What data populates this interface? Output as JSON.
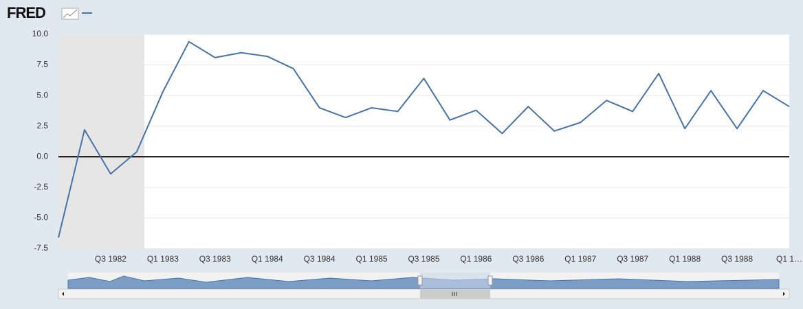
{
  "logo": "FRED",
  "chart_data": {
    "type": "line",
    "categories": [
      null,
      null,
      "Q3 1982",
      null,
      "Q1 1983",
      null,
      "Q3 1983",
      null,
      "Q1 1984",
      null,
      "Q3 1984",
      null,
      "Q1 1985",
      null,
      "Q3 1985",
      null,
      "Q1 1986",
      null,
      "Q3 1986",
      null,
      "Q1 1987",
      null,
      "Q3 1987",
      null,
      "Q1 1988",
      null,
      "Q3 1988",
      null,
      "Q1 1…"
    ],
    "series": [
      {
        "color": "#4572a7",
        "values": [
          -6.6,
          2.2,
          -1.4,
          0.4,
          5.3,
          9.4,
          8.1,
          8.5,
          8.2,
          7.2,
          4.0,
          3.2,
          4.0,
          3.7,
          6.4,
          3.0,
          3.8,
          1.9,
          4.1,
          2.1,
          2.8,
          4.6,
          3.7,
          6.8,
          2.3,
          5.4,
          2.3,
          5.4,
          4.1
        ]
      }
    ],
    "ylim": [
      -7.5,
      10
    ],
    "yticks": [
      -7.5,
      {
        "value": -5,
        "label": "-5.0"
      },
      -2.5,
      {
        "value": 0,
        "label": "0.0"
      },
      2.5,
      {
        "value": 5,
        "label": "5.0"
      },
      7.5,
      {
        "value": 10,
        "label": "10.0"
      }
    ],
    "grid": true
  }
}
